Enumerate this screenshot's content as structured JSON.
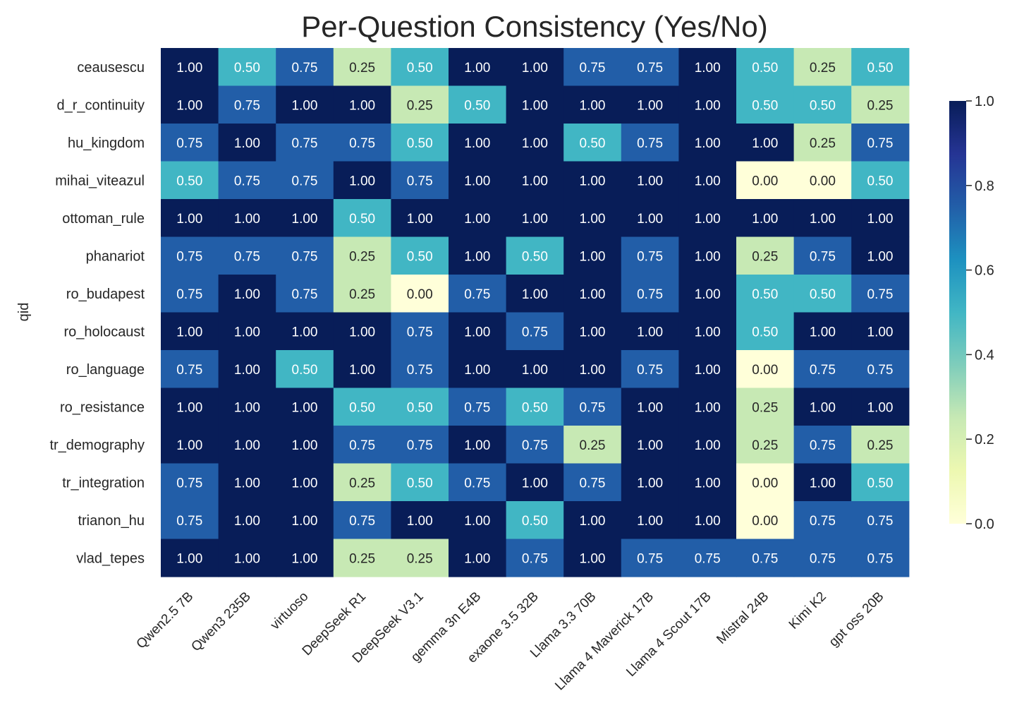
{
  "chart_data": {
    "type": "heatmap",
    "title": "Per-Question Consistency (Yes/No)",
    "ylabel": "qid",
    "xlabel": "",
    "columns": [
      "Qwen2.5 7B",
      "Qwen3 235B",
      "virtuoso",
      "DeepSeek R1",
      "DeepSeek V3.1",
      "gemma 3n E4B",
      "exaone 3.5 32B",
      "Llama 3.3 70B",
      "Llama 4 Maverick 17B",
      "Llama 4 Scout 17B",
      "Mistral 24B",
      "Kimi K2",
      "gpt oss 20B"
    ],
    "rows": [
      "ceausescu",
      "d_r_continuity",
      "hu_kingdom",
      "mihai_viteazul",
      "ottoman_rule",
      "phanariot",
      "ro_budapest",
      "ro_holocaust",
      "ro_language",
      "ro_resistance",
      "tr_demography",
      "tr_integration",
      "trianon_hu",
      "vlad_tepes"
    ],
    "values": [
      [
        1.0,
        0.5,
        0.75,
        0.25,
        0.5,
        1.0,
        1.0,
        0.75,
        0.75,
        1.0,
        0.5,
        0.25,
        0.5
      ],
      [
        1.0,
        0.75,
        1.0,
        1.0,
        0.25,
        0.5,
        1.0,
        1.0,
        1.0,
        1.0,
        0.5,
        0.5,
        0.25
      ],
      [
        0.75,
        1.0,
        0.75,
        0.75,
        0.5,
        1.0,
        1.0,
        0.5,
        0.75,
        1.0,
        1.0,
        0.25,
        0.75
      ],
      [
        0.5,
        0.75,
        0.75,
        1.0,
        0.75,
        1.0,
        1.0,
        1.0,
        1.0,
        1.0,
        0.0,
        0.0,
        0.5
      ],
      [
        1.0,
        1.0,
        1.0,
        0.5,
        1.0,
        1.0,
        1.0,
        1.0,
        1.0,
        1.0,
        1.0,
        1.0,
        1.0
      ],
      [
        0.75,
        0.75,
        0.75,
        0.25,
        0.5,
        1.0,
        0.5,
        1.0,
        0.75,
        1.0,
        0.25,
        0.75,
        1.0
      ],
      [
        0.75,
        1.0,
        0.75,
        0.25,
        0.0,
        0.75,
        1.0,
        1.0,
        0.75,
        1.0,
        0.5,
        0.5,
        0.75
      ],
      [
        1.0,
        1.0,
        1.0,
        1.0,
        0.75,
        1.0,
        0.75,
        1.0,
        1.0,
        1.0,
        0.5,
        1.0,
        1.0
      ],
      [
        0.75,
        1.0,
        0.5,
        1.0,
        0.75,
        1.0,
        1.0,
        1.0,
        0.75,
        1.0,
        0.0,
        0.75,
        0.75
      ],
      [
        1.0,
        1.0,
        1.0,
        0.5,
        0.5,
        0.75,
        0.5,
        0.75,
        1.0,
        1.0,
        0.25,
        1.0,
        1.0
      ],
      [
        1.0,
        1.0,
        1.0,
        0.75,
        0.75,
        1.0,
        0.75,
        0.25,
        1.0,
        1.0,
        0.25,
        0.75,
        0.25
      ],
      [
        0.75,
        1.0,
        1.0,
        0.25,
        0.5,
        0.75,
        1.0,
        0.75,
        1.0,
        1.0,
        0.0,
        1.0,
        0.5
      ],
      [
        0.75,
        1.0,
        1.0,
        0.75,
        1.0,
        1.0,
        0.5,
        1.0,
        1.0,
        1.0,
        0.0,
        0.75,
        0.75
      ],
      [
        1.0,
        1.0,
        1.0,
        0.25,
        0.25,
        1.0,
        0.75,
        1.0,
        0.75,
        0.75,
        0.75,
        0.75,
        0.75
      ]
    ],
    "value_format": "2 decimals",
    "colorscale": "YlGnBu",
    "colors": {
      "0.00": "#ffffd9",
      "0.25": "#c7e9b4",
      "0.50": "#41b6c4",
      "0.75": "#225ea8",
      "1.00": "#081d58"
    },
    "colorbar": {
      "range": [
        0.0,
        1.0
      ],
      "ticks": [
        "0.0",
        "0.2",
        "0.4",
        "0.6",
        "0.8",
        "1.0"
      ]
    }
  }
}
